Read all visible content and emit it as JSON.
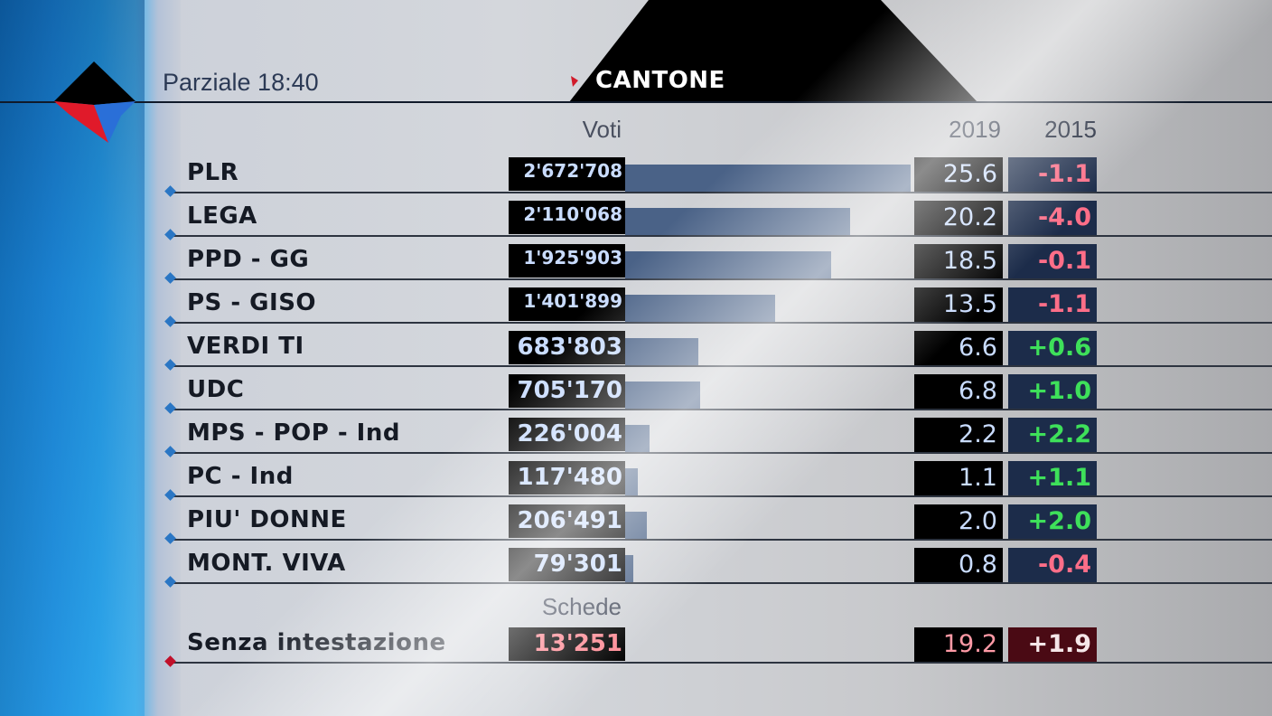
{
  "header": {
    "parziale": "Parziale 18:40",
    "region": "CANTONE"
  },
  "columns": {
    "voti": "Voti",
    "y2019": "2019",
    "y2015": "2015",
    "schede": "Schede"
  },
  "colors": {
    "bar": "#4a6287",
    "negative": "#ff6e88",
    "positive": "#3ee05a",
    "accent_blue": "#1a84d8",
    "accent_red": "#c0102a"
  },
  "chart_data": {
    "type": "bar",
    "orientation": "horizontal",
    "parties": [
      {
        "name": "PLR",
        "votes": "2'672'708",
        "votes_value": 2672708,
        "pct_2019": "25.6",
        "pct_value": 25.6,
        "change_2015": "-1.1",
        "sign": "neg"
      },
      {
        "name": "LEGA",
        "votes": "2'110'068",
        "votes_value": 2110068,
        "pct_2019": "20.2",
        "pct_value": 20.2,
        "change_2015": "-4.0",
        "sign": "neg"
      },
      {
        "name": "PPD - GG",
        "votes": "1'925'903",
        "votes_value": 1925903,
        "pct_2019": "18.5",
        "pct_value": 18.5,
        "change_2015": "-0.1",
        "sign": "neg"
      },
      {
        "name": "PS - GISO",
        "votes": "1'401'899",
        "votes_value": 1401899,
        "pct_2019": "13.5",
        "pct_value": 13.5,
        "change_2015": "-1.1",
        "sign": "neg"
      },
      {
        "name": "VERDI TI",
        "votes": "683'803",
        "votes_value": 683803,
        "pct_2019": "6.6",
        "pct_value": 6.6,
        "change_2015": "+0.6",
        "sign": "pos"
      },
      {
        "name": "UDC",
        "votes": "705'170",
        "votes_value": 705170,
        "pct_2019": "6.8",
        "pct_value": 6.8,
        "change_2015": "+1.0",
        "sign": "pos"
      },
      {
        "name": "MPS - POP - Ind",
        "votes": "226'004",
        "votes_value": 226004,
        "pct_2019": "2.2",
        "pct_value": 2.2,
        "change_2015": "+2.2",
        "sign": "pos"
      },
      {
        "name": "PC - Ind",
        "votes": "117'480",
        "votes_value": 117480,
        "pct_2019": "1.1",
        "pct_value": 1.1,
        "change_2015": "+1.1",
        "sign": "pos"
      },
      {
        "name": "PIU' DONNE",
        "votes": "206'491",
        "votes_value": 206491,
        "pct_2019": "2.0",
        "pct_value": 2.0,
        "change_2015": "+2.0",
        "sign": "pos"
      },
      {
        "name": "MONT. VIVA",
        "votes": "79'301",
        "votes_value": 79301,
        "pct_2019": "0.8",
        "pct_value": 0.8,
        "change_2015": "-0.4",
        "sign": "neg"
      }
    ],
    "extra": {
      "name": "Senza intestazione",
      "schede": "13'251",
      "pct_2019": "19.2",
      "change_2015": "+1.9"
    }
  }
}
